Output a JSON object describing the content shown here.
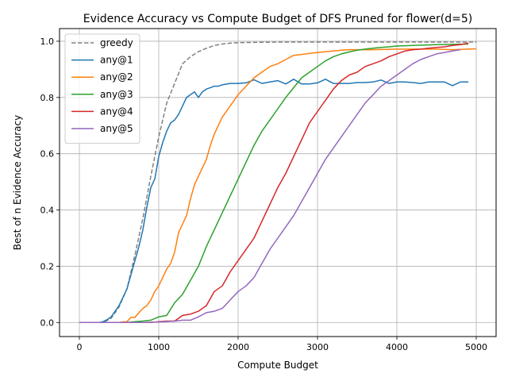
{
  "chart_data": {
    "type": "line",
    "title": "Evidence Accuracy vs Compute Budget of DFS Pruned for flower(d=5)",
    "xlabel": "Compute Budget",
    "ylabel": "Best of n Evidence Accuracy",
    "xlim": [
      -250,
      5250
    ],
    "ylim": [
      -0.05,
      1.045
    ],
    "xticks": [
      0,
      1000,
      2000,
      3000,
      4000,
      5000
    ],
    "yticks": [
      0.0,
      0.2,
      0.4,
      0.6,
      0.8,
      1.0
    ],
    "xtick_labels": [
      "0",
      "1000",
      "2000",
      "3000",
      "4000",
      "5000"
    ],
    "ytick_labels": [
      "0.0",
      "0.2",
      "0.4",
      "0.6",
      "0.8",
      "1.0"
    ],
    "grid": true,
    "legend_position": "top-left",
    "series": [
      {
        "name": "greedy",
        "color": "#808080",
        "dashed": true,
        "x": [
          0,
          300,
          400,
          500,
          600,
          700,
          800,
          900,
          1000,
          1100,
          1200,
          1300,
          1400,
          1500,
          1600,
          1700,
          1800,
          1900,
          2000,
          2200,
          2500,
          3000,
          4000,
          5000
        ],
        "y": [
          0.0,
          0.0,
          0.015,
          0.055,
          0.12,
          0.24,
          0.37,
          0.52,
          0.66,
          0.78,
          0.85,
          0.92,
          0.945,
          0.963,
          0.975,
          0.985,
          0.99,
          0.993,
          0.995,
          0.996,
          0.997,
          0.997,
          0.997,
          0.997
        ]
      },
      {
        "name": "any@1",
        "color": "#1f77b4",
        "dashed": false,
        "x": [
          0,
          250,
          300,
          350,
          400,
          450,
          500,
          550,
          600,
          650,
          700,
          750,
          800,
          850,
          900,
          950,
          1000,
          1050,
          1100,
          1150,
          1200,
          1250,
          1300,
          1350,
          1400,
          1450,
          1500,
          1550,
          1600,
          1650,
          1700,
          1750,
          1800,
          1900,
          2000,
          2100,
          2200,
          2300,
          2400,
          2500,
          2600,
          2700,
          2800,
          2900,
          3000,
          3100,
          3200,
          3300,
          3400,
          3500,
          3600,
          3700,
          3800,
          3900,
          4000,
          4100,
          4200,
          4300,
          4400,
          4500,
          4600,
          4700,
          4800,
          4900
        ],
        "y": [
          0.0,
          0.0,
          0.003,
          0.01,
          0.02,
          0.04,
          0.06,
          0.09,
          0.12,
          0.17,
          0.22,
          0.27,
          0.33,
          0.41,
          0.48,
          0.51,
          0.59,
          0.64,
          0.68,
          0.71,
          0.72,
          0.74,
          0.77,
          0.8,
          0.81,
          0.82,
          0.8,
          0.82,
          0.83,
          0.835,
          0.84,
          0.84,
          0.845,
          0.85,
          0.85,
          0.852,
          0.863,
          0.85,
          0.855,
          0.86,
          0.848,
          0.865,
          0.848,
          0.848,
          0.852,
          0.865,
          0.85,
          0.85,
          0.85,
          0.853,
          0.853,
          0.855,
          0.862,
          0.85,
          0.855,
          0.855,
          0.853,
          0.85,
          0.855,
          0.855,
          0.855,
          0.842,
          0.855,
          0.855
        ]
      },
      {
        "name": "any@2",
        "color": "#ff7f0e",
        "dashed": false,
        "x": [
          0,
          300,
          400,
          500,
          550,
          600,
          650,
          700,
          750,
          800,
          850,
          900,
          950,
          1000,
          1050,
          1100,
          1150,
          1200,
          1250,
          1300,
          1350,
          1400,
          1450,
          1500,
          1550,
          1600,
          1650,
          1700,
          1800,
          1900,
          2000,
          2100,
          2200,
          2300,
          2400,
          2500,
          2600,
          2700,
          2800,
          2900,
          3000,
          3100,
          3200,
          3300,
          3400,
          3500,
          3700,
          4000,
          4200,
          4500,
          4700,
          4900,
          5000
        ],
        "y": [
          0.0,
          0.0,
          0.0,
          0.0,
          0.002,
          0.003,
          0.018,
          0.018,
          0.035,
          0.05,
          0.06,
          0.08,
          0.11,
          0.13,
          0.16,
          0.19,
          0.21,
          0.25,
          0.32,
          0.35,
          0.38,
          0.44,
          0.49,
          0.52,
          0.55,
          0.58,
          0.63,
          0.67,
          0.73,
          0.77,
          0.81,
          0.84,
          0.87,
          0.89,
          0.91,
          0.92,
          0.935,
          0.95,
          0.953,
          0.957,
          0.96,
          0.963,
          0.965,
          0.968,
          0.97,
          0.97,
          0.97,
          0.972,
          0.972,
          0.972,
          0.97,
          0.972,
          0.973
        ]
      },
      {
        "name": "any@3",
        "color": "#2ca02c",
        "dashed": false,
        "x": [
          0,
          400,
          600,
          700,
          800,
          900,
          1000,
          1100,
          1200,
          1300,
          1400,
          1500,
          1600,
          1700,
          1800,
          1900,
          2000,
          2100,
          2200,
          2300,
          2400,
          2500,
          2600,
          2700,
          2800,
          2900,
          3000,
          3100,
          3200,
          3300,
          3400,
          3500,
          3600,
          3700,
          3800,
          3900,
          4000,
          4200,
          4500,
          4900
        ],
        "y": [
          0.0,
          0.0,
          0.0,
          0.003,
          0.005,
          0.008,
          0.02,
          0.025,
          0.07,
          0.1,
          0.15,
          0.2,
          0.27,
          0.33,
          0.39,
          0.45,
          0.51,
          0.57,
          0.63,
          0.68,
          0.72,
          0.76,
          0.8,
          0.835,
          0.87,
          0.89,
          0.91,
          0.93,
          0.945,
          0.955,
          0.962,
          0.968,
          0.972,
          0.975,
          0.978,
          0.98,
          0.983,
          0.985,
          0.988,
          0.99
        ]
      },
      {
        "name": "any@4",
        "color": "#d62728",
        "dashed": false,
        "x": [
          0,
          600,
          900,
          1000,
          1100,
          1200,
          1300,
          1400,
          1500,
          1600,
          1700,
          1800,
          1900,
          2000,
          2100,
          2200,
          2300,
          2400,
          2500,
          2600,
          2700,
          2800,
          2900,
          3000,
          3100,
          3200,
          3300,
          3400,
          3500,
          3600,
          3700,
          3800,
          3900,
          4000,
          4100,
          4200,
          4300,
          4400,
          4500,
          4600,
          4700,
          4800,
          4900
        ],
        "y": [
          0.0,
          0.0,
          0.0,
          0.003,
          0.005,
          0.005,
          0.025,
          0.03,
          0.04,
          0.06,
          0.11,
          0.13,
          0.18,
          0.22,
          0.26,
          0.3,
          0.36,
          0.42,
          0.48,
          0.53,
          0.59,
          0.65,
          0.71,
          0.75,
          0.79,
          0.83,
          0.86,
          0.88,
          0.89,
          0.91,
          0.92,
          0.93,
          0.945,
          0.955,
          0.965,
          0.97,
          0.972,
          0.975,
          0.978,
          0.98,
          0.985,
          0.988,
          0.993
        ]
      },
      {
        "name": "any@5",
        "color": "#9467bd",
        "dashed": false,
        "x": [
          0,
          800,
          1000,
          1200,
          1300,
          1400,
          1500,
          1600,
          1700,
          1800,
          1900,
          2000,
          2100,
          2200,
          2300,
          2400,
          2500,
          2600,
          2700,
          2800,
          2900,
          3000,
          3100,
          3200,
          3300,
          3400,
          3500,
          3600,
          3700,
          3800,
          3900,
          4000,
          4100,
          4200,
          4300,
          4400,
          4500,
          4600,
          4700,
          4800
        ],
        "y": [
          0.0,
          0.0,
          0.002,
          0.005,
          0.008,
          0.008,
          0.02,
          0.035,
          0.04,
          0.05,
          0.08,
          0.11,
          0.13,
          0.16,
          0.21,
          0.26,
          0.3,
          0.34,
          0.38,
          0.43,
          0.48,
          0.53,
          0.58,
          0.62,
          0.66,
          0.7,
          0.74,
          0.78,
          0.81,
          0.84,
          0.86,
          0.88,
          0.9,
          0.92,
          0.935,
          0.945,
          0.955,
          0.96,
          0.965,
          0.97
        ]
      }
    ]
  }
}
